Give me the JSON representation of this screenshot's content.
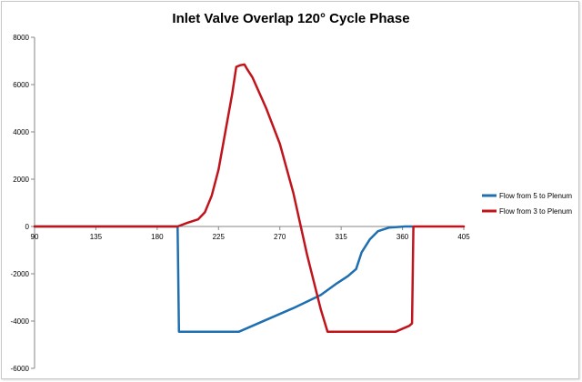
{
  "chart_data": {
    "type": "line",
    "title": "Inlet Valve Overlap 120° Cycle Phase",
    "xlabel": "",
    "ylabel": "",
    "xlim": [
      90,
      405
    ],
    "ylim": [
      -6000,
      8000
    ],
    "x_ticks": [
      90,
      135,
      180,
      225,
      270,
      315,
      360,
      405
    ],
    "y_ticks": [
      -6000,
      -4000,
      -2000,
      0,
      2000,
      4000,
      6000,
      8000
    ],
    "grid": false,
    "legend_position": "right",
    "series": [
      {
        "name": "Flow from 5 to Plenum",
        "color": "#1f6fb0",
        "points": [
          [
            90,
            0
          ],
          [
            195,
            0
          ],
          [
            196,
            -4450
          ],
          [
            240,
            -4450
          ],
          [
            260,
            -3950
          ],
          [
            280,
            -3450
          ],
          [
            300,
            -2900
          ],
          [
            312,
            -2400
          ],
          [
            320,
            -2100
          ],
          [
            326,
            -1800
          ],
          [
            330,
            -1100
          ],
          [
            336,
            -550
          ],
          [
            342,
            -200
          ],
          [
            350,
            -50
          ],
          [
            362,
            0
          ],
          [
            367,
            0
          ]
        ]
      },
      {
        "name": "Flow from 3 to Plenum",
        "color": "#c0141c",
        "points": [
          [
            90,
            0
          ],
          [
            195,
            0
          ],
          [
            202,
            150
          ],
          [
            210,
            300
          ],
          [
            215,
            600
          ],
          [
            220,
            1300
          ],
          [
            225,
            2400
          ],
          [
            230,
            4000
          ],
          [
            235,
            5600
          ],
          [
            238,
            6750
          ],
          [
            241,
            6820
          ],
          [
            244,
            6850
          ],
          [
            246,
            6650
          ],
          [
            250,
            6300
          ],
          [
            260,
            5000
          ],
          [
            270,
            3500
          ],
          [
            280,
            1400
          ],
          [
            290,
            -1200
          ],
          [
            300,
            -3500
          ],
          [
            305,
            -4450
          ],
          [
            340,
            -4450
          ],
          [
            355,
            -4450
          ],
          [
            365,
            -4200
          ],
          [
            367,
            -4100
          ],
          [
            368,
            0
          ],
          [
            405,
            0
          ]
        ]
      }
    ]
  }
}
